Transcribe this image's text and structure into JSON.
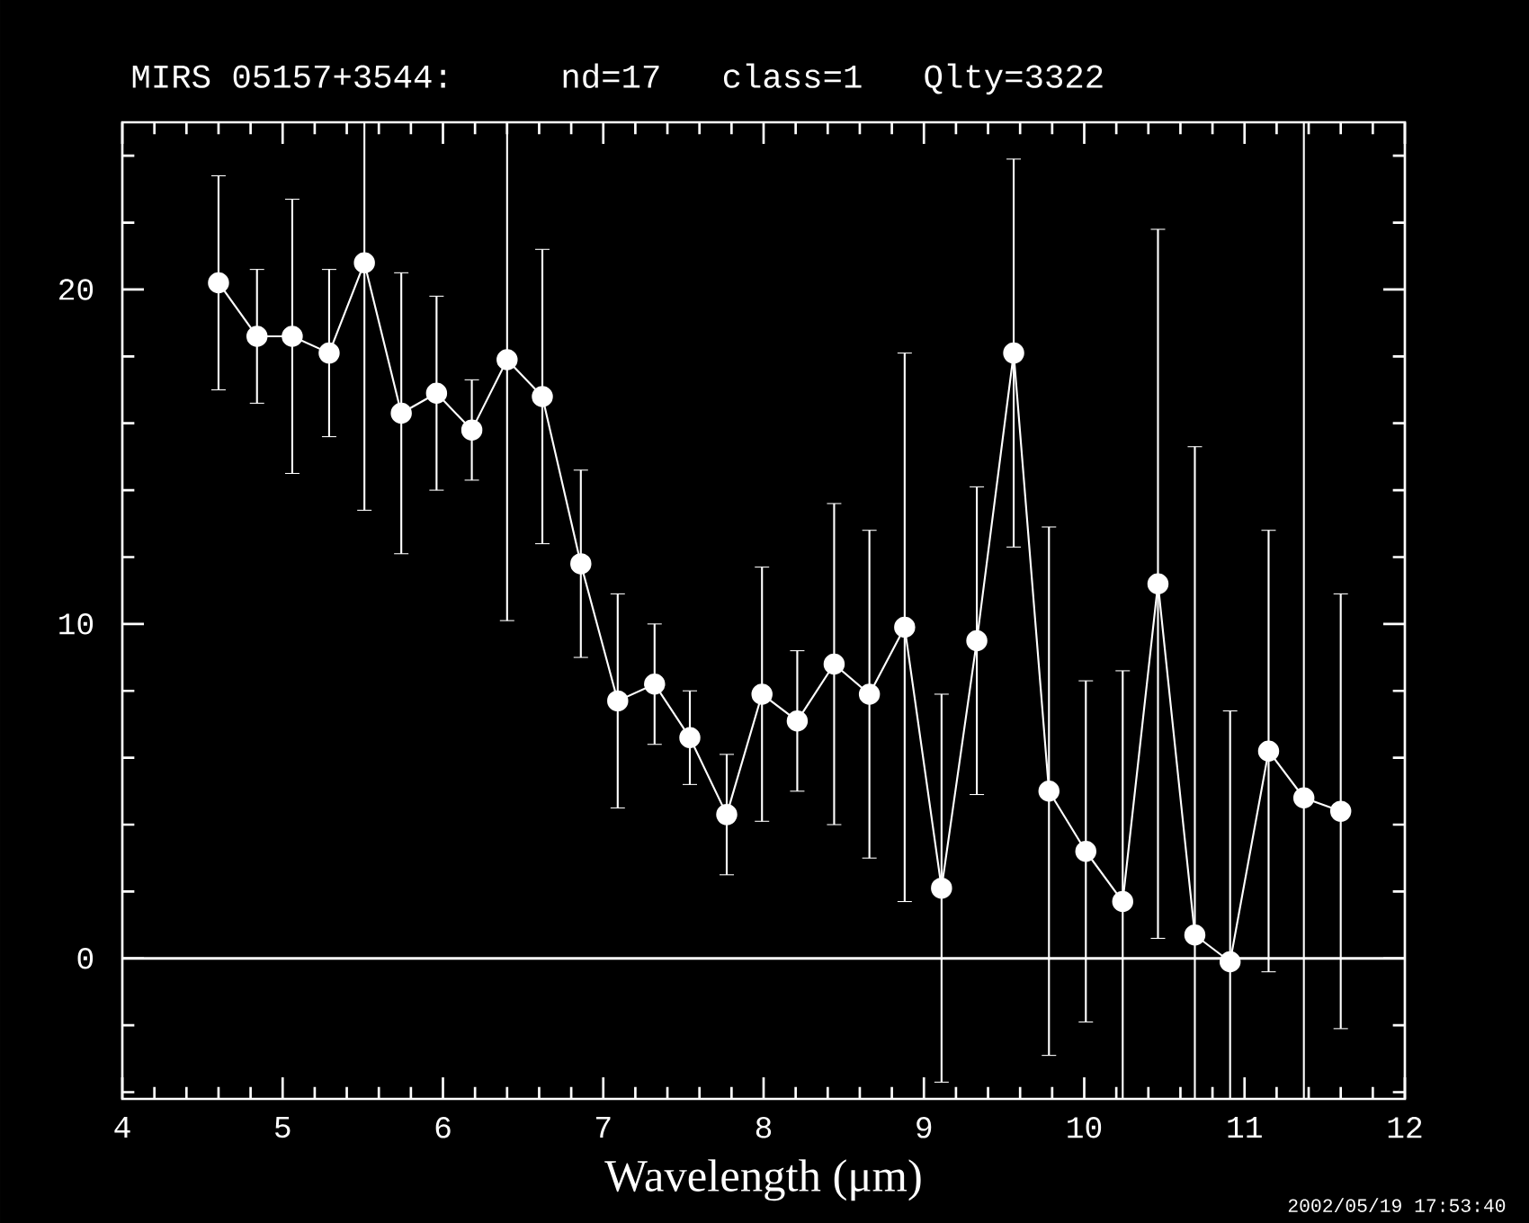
{
  "chart_data": {
    "type": "line",
    "title": "MIRS 05157+3544:    nd=17   class=1   Qlty=3322",
    "xlabel": "Wavelength (μm)",
    "annotations": [
      "2002/05/19 17:53:40"
    ],
    "x": [
      4.6,
      4.84,
      5.06,
      5.29,
      5.51,
      5.74,
      5.96,
      6.18,
      6.4,
      6.62,
      6.86,
      7.09,
      7.32,
      7.54,
      7.77,
      7.99,
      8.21,
      8.44,
      8.66,
      8.88,
      9.11,
      9.33,
      9.56,
      9.78,
      10.01,
      10.24,
      10.46,
      10.69,
      10.91,
      11.15,
      11.37,
      11.6
    ],
    "series": [
      {
        "color": "#ffffff",
        "values": [
          20.2,
          18.6,
          18.6,
          18.1,
          20.8,
          16.3,
          16.9,
          15.8,
          17.9,
          16.8,
          11.8,
          7.7,
          8.2,
          6.6,
          4.3,
          7.9,
          7.1,
          8.8,
          7.9,
          9.9,
          2.1,
          9.5,
          18.1,
          5.0,
          3.2,
          1.7,
          11.2,
          0.7,
          -0.1,
          6.2,
          4.8,
          4.4
        ],
        "errors": [
          3.2,
          2.0,
          4.1,
          2.5,
          [
            13.4,
            25
          ],
          4.2,
          2.9,
          1.5,
          [
            10.1,
            25
          ],
          4.4,
          2.8,
          3.2,
          1.8,
          1.4,
          1.8,
          3.8,
          2.1,
          4.8,
          4.9,
          8.2,
          5.8,
          4.6,
          5.8,
          7.9,
          5.1,
          [
            -4.2,
            8.6
          ],
          10.6,
          [
            -4.2,
            15.3
          ],
          [
            -4.2,
            7.4
          ],
          6.6,
          [
            -4.2,
            25
          ],
          6.5
        ]
      }
    ],
    "marker": "circle",
    "line_style": "solid",
    "xlim": [
      4,
      12
    ],
    "ylim": [
      -4.2,
      25
    ],
    "xticks": [
      4,
      {
        "value": 4.2,
        "label": null
      },
      {
        "value": 4.4,
        "label": null
      },
      {
        "value": 4.6,
        "label": null
      },
      {
        "value": 4.8,
        "label": null
      },
      5,
      {
        "value": 5.2,
        "label": null
      },
      {
        "value": 5.4,
        "label": null
      },
      {
        "value": 5.6,
        "label": null
      },
      {
        "value": 5.8,
        "label": null
      },
      6,
      {
        "value": 6.2,
        "label": null
      },
      {
        "value": 6.4,
        "label": null
      },
      {
        "value": 6.6,
        "label": null
      },
      {
        "value": 6.8,
        "label": null
      },
      7,
      {
        "value": 7.2,
        "label": null
      },
      {
        "value": 7.4,
        "label": null
      },
      {
        "value": 7.6,
        "label": null
      },
      {
        "value": 7.8,
        "label": null
      },
      8,
      {
        "value": 8.2,
        "label": null
      },
      {
        "value": 8.4,
        "label": null
      },
      {
        "value": 8.6,
        "label": null
      },
      {
        "value": 8.8,
        "label": null
      },
      9,
      {
        "value": 9.2,
        "label": null
      },
      {
        "value": 9.4,
        "label": null
      },
      {
        "value": 9.6,
        "label": null
      },
      {
        "value": 9.8,
        "label": null
      },
      10,
      {
        "value": 10.2,
        "label": null
      },
      {
        "value": 10.4,
        "label": null
      },
      {
        "value": 10.6,
        "label": null
      },
      {
        "value": 10.8,
        "label": null
      },
      11,
      {
        "value": 11.2,
        "label": null
      },
      {
        "value": 11.4,
        "label": null
      },
      {
        "value": 11.6,
        "label": null
      },
      {
        "value": 11.8,
        "label": null
      },
      12
    ],
    "yticks": [
      {
        "value": -4,
        "label": null
      },
      {
        "value": -2,
        "label": null
      },
      0,
      {
        "value": 2,
        "label": null
      },
      {
        "value": 4,
        "label": null
      },
      {
        "value": 6,
        "label": null
      },
      {
        "value": 8,
        "label": null
      },
      10,
      {
        "value": 12,
        "label": null
      },
      {
        "value": 14,
        "label": null
      },
      {
        "value": 16,
        "label": null
      },
      {
        "value": 18,
        "label": null
      },
      20,
      {
        "value": 22,
        "label": null
      },
      {
        "value": 24,
        "label": null
      }
    ],
    "ref_lines": [
      {
        "axis": "y",
        "value": 0,
        "color": "#ffffff"
      }
    ]
  }
}
